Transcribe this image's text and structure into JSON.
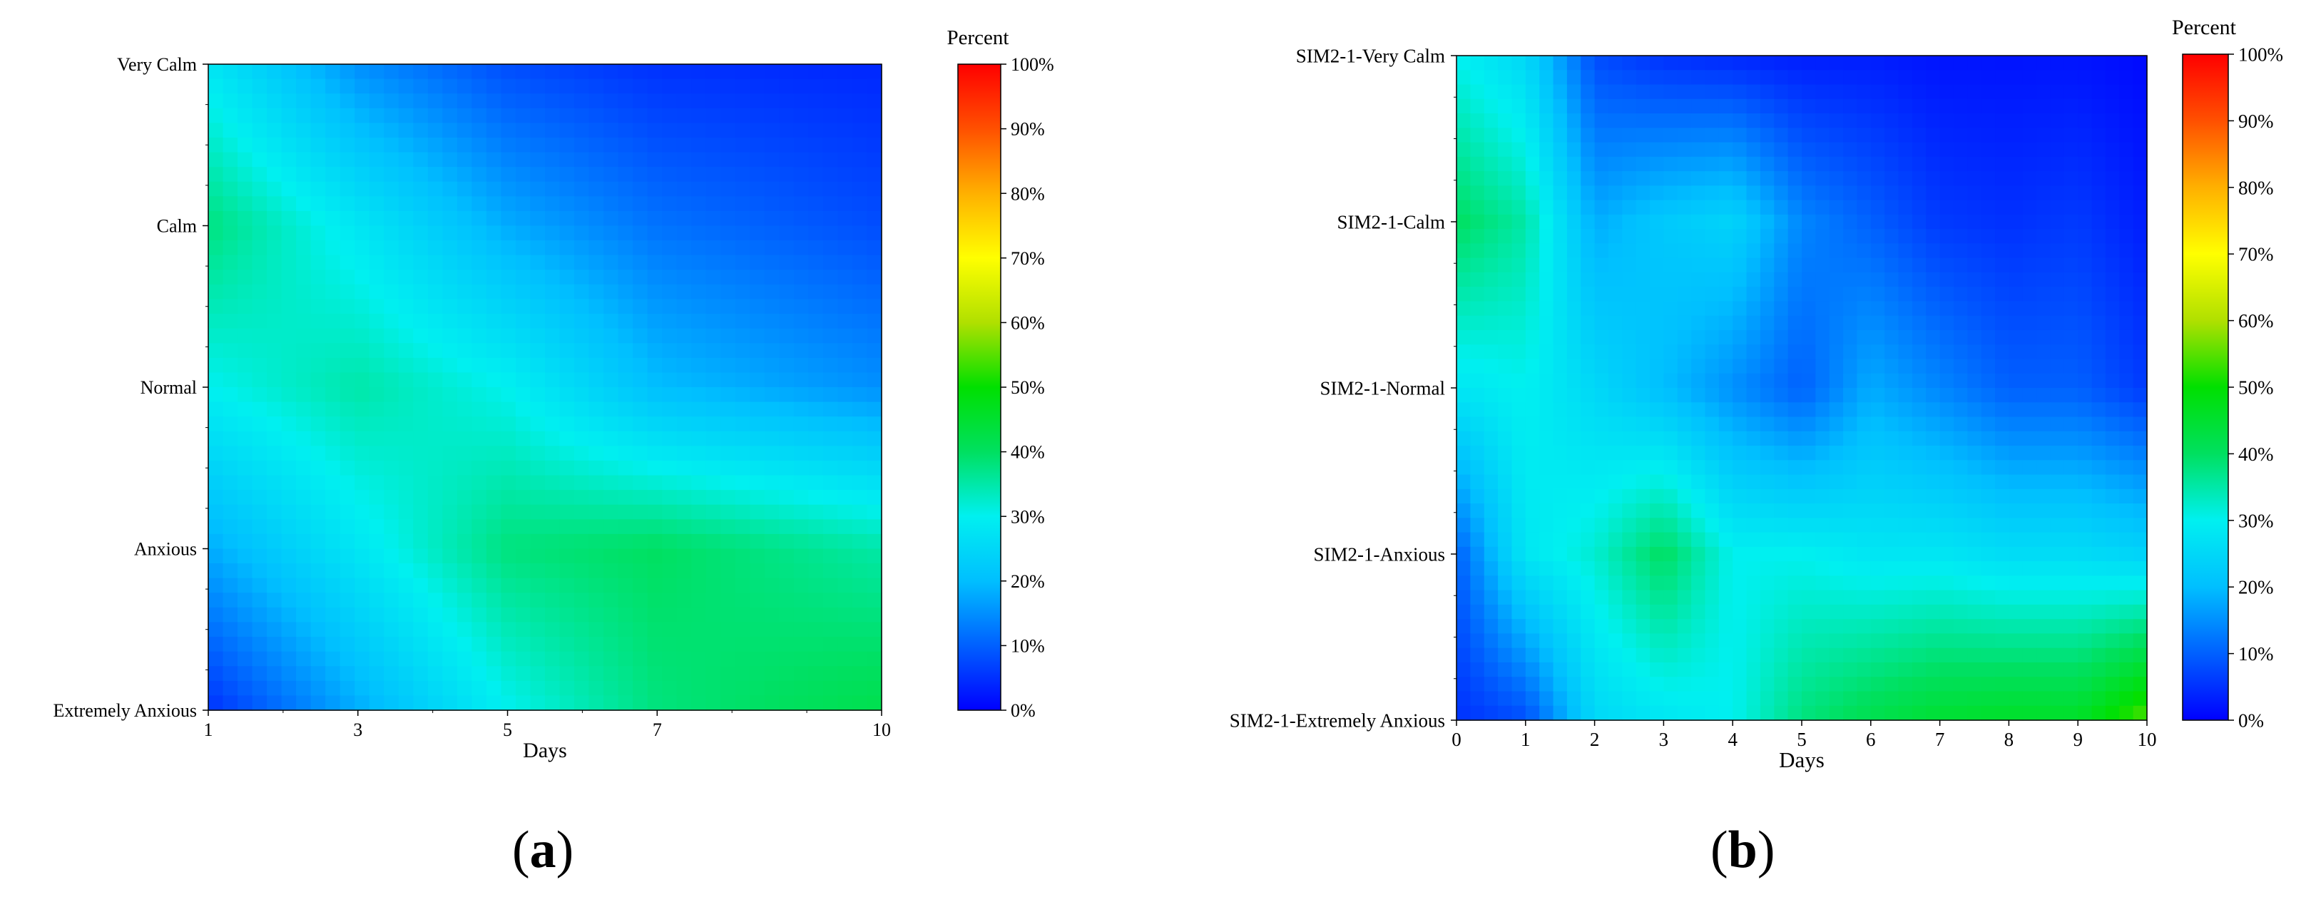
{
  "colormap": {
    "stops": [
      "#0000ff",
      "#0060ff",
      "#00bfff",
      "#00f0f0",
      "#00e060",
      "#00e000",
      "#b0e000",
      "#ffff00",
      "#ffb000",
      "#ff5000",
      "#ff0000"
    ]
  },
  "chart_data": [
    {
      "type": "heatmap",
      "panel_label": "a",
      "title": "",
      "xlabel": "Days",
      "ylabel": "",
      "x": [
        1,
        3,
        5,
        7,
        10
      ],
      "x_ticks": [
        "1",
        "3",
        "5",
        "7",
        "10"
      ],
      "xlim": [
        1,
        10
      ],
      "y_categories": [
        "Extremely Anxious",
        "Anxious",
        "Normal",
        "Calm",
        "Very Calm"
      ],
      "z_percent": [
        [
          5,
          18,
          30,
          38,
          42
        ],
        [
          18,
          28,
          38,
          40,
          35
        ],
        [
          30,
          35,
          30,
          20,
          15
        ],
        [
          38,
          28,
          18,
          12,
          8
        ],
        [
          28,
          15,
          8,
          5,
          4
        ]
      ],
      "colorbar": {
        "label": "Percent",
        "ticks": [
          "0%",
          "10%",
          "20%",
          "30%",
          "40%",
          "50%",
          "60%",
          "70%",
          "80%",
          "90%",
          "100%"
        ],
        "range": [
          0,
          100
        ]
      }
    },
    {
      "type": "heatmap",
      "panel_label": "b",
      "title": "",
      "xlabel": "Days",
      "ylabel": "",
      "x": [
        0,
        1,
        2,
        3,
        4,
        5,
        6,
        7,
        8,
        9,
        10
      ],
      "x_ticks": [
        "0",
        "1",
        "2",
        "3",
        "4",
        "5",
        "6",
        "7",
        "8",
        "9",
        "10"
      ],
      "xlim": [
        0,
        10
      ],
      "y_categories": [
        "SIM2-1-Extremely Anxious",
        "SIM2-1-Anxious",
        "SIM2-1-Normal",
        "SIM2-1-Calm",
        "SIM2-1-Very Calm"
      ],
      "z_percent": [
        [
          5,
          8,
          25,
          28,
          30,
          38,
          42,
          45,
          46,
          46,
          55
        ],
        [
          10,
          28,
          32,
          40,
          30,
          30,
          28,
          28,
          26,
          26,
          24
        ],
        [
          28,
          30,
          25,
          20,
          15,
          10,
          18,
          14,
          10,
          10,
          6
        ],
        [
          40,
          35,
          18,
          22,
          24,
          14,
          10,
          6,
          5,
          6,
          3
        ],
        [
          30,
          25,
          8,
          5,
          4,
          3,
          3,
          2,
          2,
          2,
          1
        ]
      ],
      "colorbar": {
        "label": "Percent",
        "ticks": [
          "0%",
          "10%",
          "20%",
          "30%",
          "40%",
          "50%",
          "60%",
          "70%",
          "80%",
          "90%",
          "100%"
        ],
        "range": [
          0,
          100
        ]
      }
    }
  ]
}
